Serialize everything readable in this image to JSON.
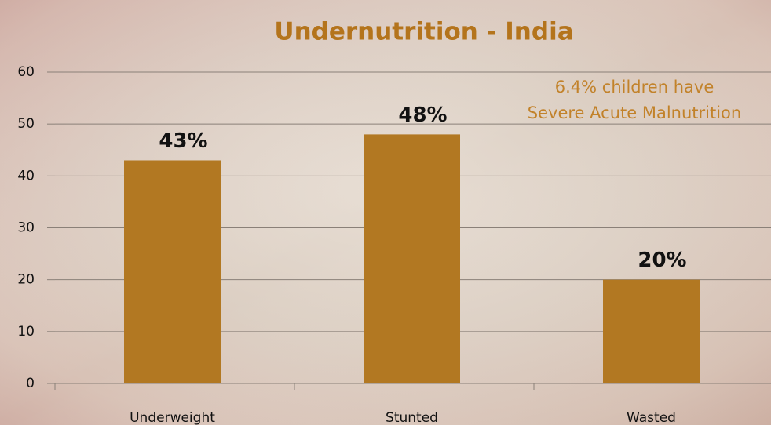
{
  "chart_data": {
    "type": "bar",
    "title": "Undernutrition - India",
    "annotation": [
      "6.4% children have",
      "Severe Acute Malnutrition"
    ],
    "categories": [
      "Underweight",
      "Stunted",
      "Wasted"
    ],
    "values": [
      43,
      48,
      20
    ],
    "value_labels": [
      "43%",
      "48%",
      "20%"
    ],
    "color": "#b27822",
    "ylim": [
      0,
      60
    ],
    "yticks": [
      0,
      10,
      20,
      30,
      40,
      50,
      60
    ],
    "grid": true
  }
}
